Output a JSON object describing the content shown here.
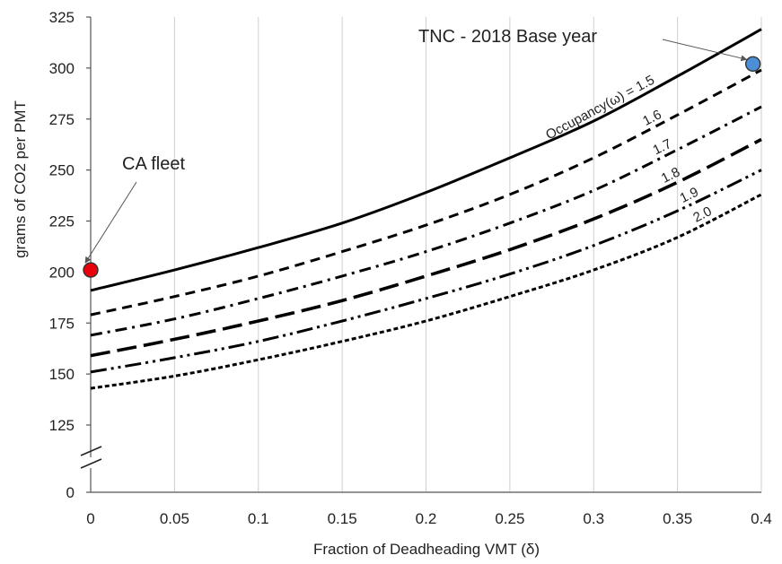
{
  "chart_data": {
    "type": "line",
    "xlabel": "Fraction of Deadheading VMT (δ)",
    "ylabel": "grams of CO2 per PMT",
    "xlim": [
      0,
      0.4
    ],
    "ylim": [
      100,
      325
    ],
    "x_ticks": [
      "0",
      "0.05",
      "0.1",
      "0.15",
      "0.2",
      "0.25",
      "0.3",
      "0.35",
      "0.4"
    ],
    "y_ticks": [
      "0",
      "125",
      "150",
      "175",
      "200",
      "225",
      "250",
      "275",
      "300",
      "325"
    ],
    "axis_break": "y",
    "grid": "vertical",
    "x": [
      0,
      0.05,
      0.1,
      0.15,
      0.2,
      0.25,
      0.3,
      0.35,
      0.4
    ],
    "series": [
      {
        "name": "Occupancy(ω) = 1.5",
        "dash": "solid",
        "values": [
          191,
          201,
          212,
          224,
          239,
          256,
          274,
          296,
          319
        ]
      },
      {
        "name": "1.6",
        "dash": "dashed",
        "values": [
          179,
          188,
          198,
          210,
          223,
          238,
          256,
          277,
          299
        ]
      },
      {
        "name": "1.7",
        "dash": "dash-dot",
        "values": [
          169,
          177,
          187,
          198,
          210,
          224,
          240,
          260,
          281
        ]
      },
      {
        "name": "1.8",
        "dash": "long-dash",
        "values": [
          159,
          167,
          176,
          186,
          198,
          211,
          226,
          244,
          265
        ]
      },
      {
        "name": "1.9",
        "dash": "dash-dot-dot",
        "values": [
          151,
          158,
          166,
          176,
          187,
          199,
          213,
          230,
          250
        ]
      },
      {
        "name": "2.0",
        "dash": "dotted",
        "values": [
          143,
          149,
          157,
          166,
          176,
          188,
          201,
          217,
          238
        ]
      }
    ],
    "points": [
      {
        "label": "CA fleet",
        "x": 0,
        "y": 201,
        "color": "#e8000b"
      },
      {
        "label": "TNC - 2018 Base year",
        "x": 0.395,
        "y": 302,
        "color": "#4d8fd6"
      }
    ]
  }
}
